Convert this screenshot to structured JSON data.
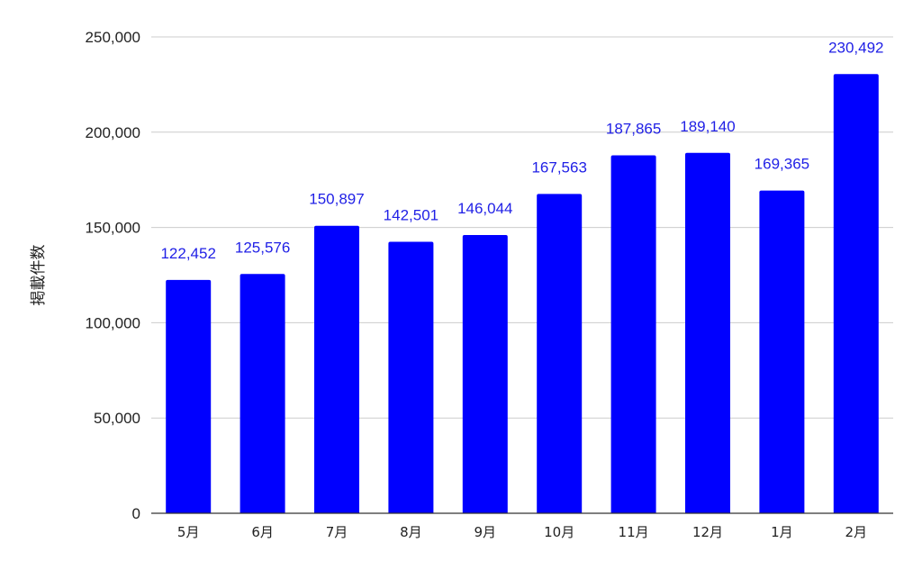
{
  "chart_data": {
    "type": "bar",
    "title": "",
    "xlabel": "",
    "ylabel": "掲載件数",
    "categories": [
      "5月",
      "6月",
      "7月",
      "8月",
      "9月",
      "10月",
      "11月",
      "12月",
      "1月",
      "2月"
    ],
    "values": [
      122452,
      125576,
      150897,
      142501,
      146044,
      167563,
      187865,
      189140,
      169365,
      230492
    ],
    "value_labels": [
      "122,452",
      "125,576",
      "150,897",
      "142,501",
      "146,044",
      "167,563",
      "187,865",
      "189,140",
      "169,365",
      "230,492"
    ],
    "ylim": [
      0,
      250000
    ],
    "yticks": [
      0,
      50000,
      100000,
      150000,
      200000,
      250000
    ],
    "ytick_labels": [
      "0",
      "50,000",
      "100,000",
      "150,000",
      "200,000",
      "250,000"
    ],
    "grid": true,
    "legend": "none",
    "colors": {
      "bar": "#0000ff",
      "data_label": "#1f1fe6",
      "grid": "#cccccc",
      "axis": "#333333"
    }
  }
}
